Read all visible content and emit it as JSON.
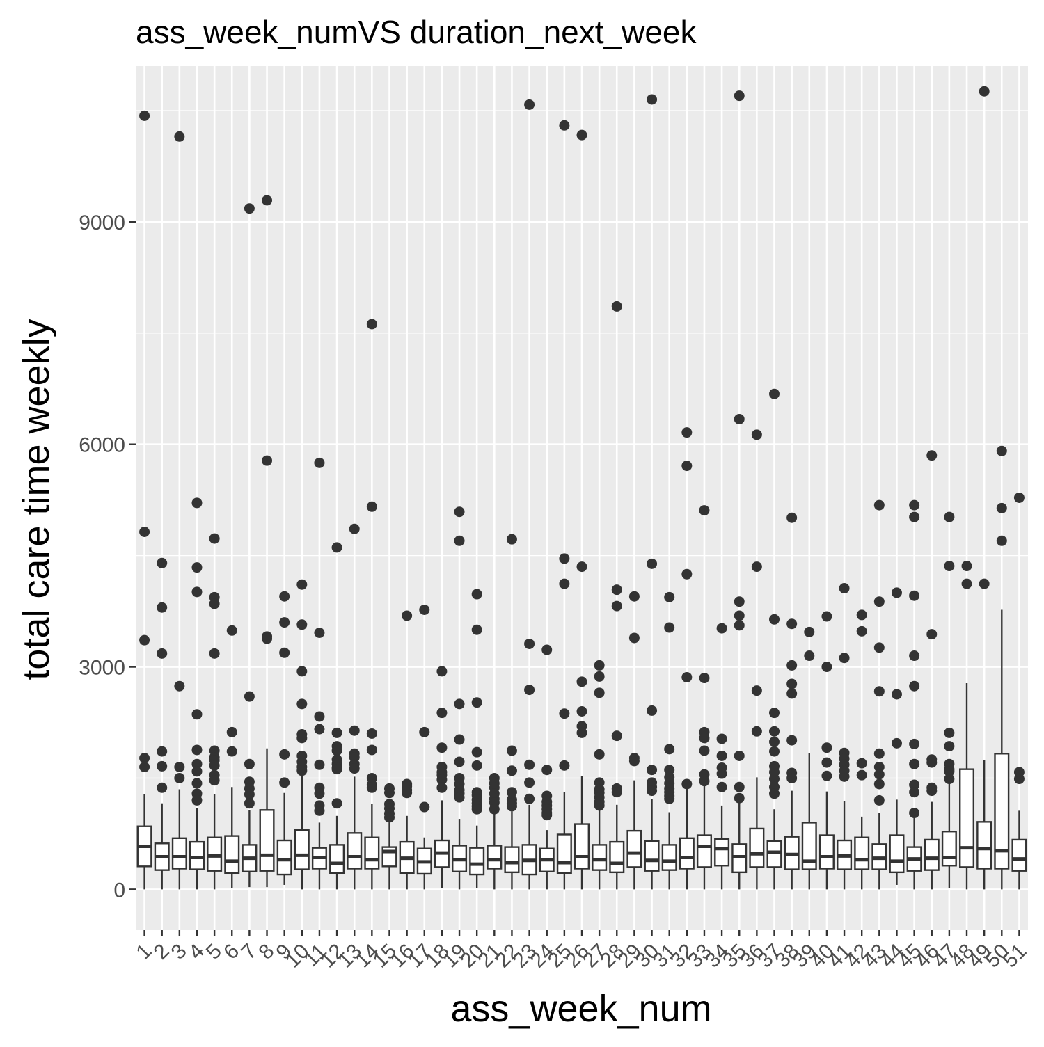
{
  "chart_data": {
    "type": "box",
    "title": "ass_week_numVS duration_next_week",
    "xlabel": "ass_week_num",
    "ylabel": "total care time weekly",
    "ylim": [
      -550,
      11100
    ],
    "yticks": [
      0,
      3000,
      6000,
      9000
    ],
    "grid": true,
    "legend": "none",
    "colors": {
      "panel_background": "#ebebeb",
      "grid_line": "#ffffff",
      "box_fill": "#ffffff",
      "box_line": "#333333",
      "outlier": "#333333",
      "tick_text": "#4d4d4d"
    },
    "categories": [
      "1",
      "2",
      "3",
      "4",
      "5",
      "6",
      "7",
      "8",
      "9",
      "10",
      "11",
      "12",
      "13",
      "14",
      "15",
      "16",
      "17",
      "18",
      "19",
      "20",
      "21",
      "22",
      "23",
      "24",
      "25",
      "26",
      "27",
      "28",
      "29",
      "30",
      "31",
      "32",
      "33",
      "34",
      "35",
      "36",
      "37",
      "38",
      "39",
      "40",
      "41",
      "42",
      "43",
      "44",
      "45",
      "46",
      "47",
      "48",
      "49",
      "50",
      "51"
    ],
    "boxes": [
      {
        "min": 0,
        "q1": 310,
        "median": 580,
        "q3": 850,
        "max": 1280,
        "outliers": [
          10430,
          4820,
          3360,
          1770,
          1650
        ]
      },
      {
        "min": 0,
        "q1": 260,
        "median": 440,
        "q3": 620,
        "max": 1160,
        "outliers": [
          4400,
          3800,
          3180,
          1860,
          1660,
          1370
        ]
      },
      {
        "min": 0,
        "q1": 280,
        "median": 440,
        "q3": 690,
        "max": 1350,
        "outliers": [
          10150,
          2740,
          1650,
          1500
        ]
      },
      {
        "min": 0,
        "q1": 270,
        "median": 430,
        "q3": 640,
        "max": 1100,
        "outliers": [
          5210,
          4340,
          4010,
          2360,
          1880,
          1690,
          1590,
          1430,
          1290,
          1200
        ]
      },
      {
        "min": 0,
        "q1": 250,
        "median": 450,
        "q3": 700,
        "max": 1280,
        "outliers": [
          4730,
          3940,
          3850,
          3180,
          1870,
          1780,
          1740,
          1670,
          1540,
          1470
        ]
      },
      {
        "min": 20,
        "q1": 220,
        "median": 380,
        "q3": 720,
        "max": 1380,
        "outliers": [
          3490,
          2120,
          1860
        ]
      },
      {
        "min": 30,
        "q1": 240,
        "median": 420,
        "q3": 600,
        "max": 1070,
        "outliers": [
          9180,
          2600,
          1690,
          1450,
          1360,
          1280,
          1160
        ]
      },
      {
        "min": 30,
        "q1": 250,
        "median": 460,
        "q3": 1070,
        "max": 1900,
        "outliers": [
          9290,
          5780,
          3410,
          3380
        ]
      },
      {
        "min": 60,
        "q1": 200,
        "median": 400,
        "q3": 660,
        "max": 1300,
        "outliers": [
          3950,
          3600,
          3190,
          1820,
          1440
        ]
      },
      {
        "min": 0,
        "q1": 270,
        "median": 460,
        "q3": 800,
        "max": 1600,
        "outliers": [
          4110,
          3570,
          2940,
          2500,
          2090,
          2040,
          1800,
          1720,
          1650,
          1600
        ]
      },
      {
        "min": 0,
        "q1": 280,
        "median": 430,
        "q3": 560,
        "max": 900,
        "outliers": [
          5750,
          3460,
          2330,
          2160,
          1680,
          1370,
          1290,
          1130,
          1060
        ]
      },
      {
        "min": 0,
        "q1": 220,
        "median": 350,
        "q3": 600,
        "max": 990,
        "outliers": [
          4610,
          2110,
          1930,
          1870,
          1750,
          1690,
          1640,
          1620,
          1160
        ]
      },
      {
        "min": 0,
        "q1": 280,
        "median": 440,
        "q3": 760,
        "max": 1520,
        "outliers": [
          4860,
          2140,
          1830,
          1780,
          1690,
          1630
        ]
      },
      {
        "min": 0,
        "q1": 280,
        "median": 400,
        "q3": 700,
        "max": 1150,
        "outliers": [
          7620,
          5160,
          2100,
          1880,
          1500,
          1410,
          1370
        ]
      },
      {
        "min": 0,
        "q1": 310,
        "median": 510,
        "q3": 570,
        "max": 900,
        "outliers": [
          1360,
          1300,
          1150,
          1090,
          1020,
          970
        ]
      },
      {
        "min": 0,
        "q1": 220,
        "median": 420,
        "q3": 640,
        "max": 990,
        "outliers": [
          3690,
          1420,
          1390,
          1340,
          1300
        ]
      },
      {
        "min": 0,
        "q1": 210,
        "median": 370,
        "q3": 550,
        "max": 700,
        "outliers": [
          3770,
          2120,
          1110
        ]
      },
      {
        "min": 20,
        "q1": 300,
        "median": 490,
        "q3": 660,
        "max": 1200,
        "outliers": [
          2940,
          2380,
          1910,
          1650,
          1580,
          1540,
          1480,
          1370
        ]
      },
      {
        "min": 0,
        "q1": 240,
        "median": 400,
        "q3": 590,
        "max": 950,
        "outliers": [
          5090,
          4700,
          2500,
          2020,
          1720,
          1500,
          1420,
          1340,
          1290,
          1240
        ]
      },
      {
        "min": 20,
        "q1": 200,
        "median": 340,
        "q3": 560,
        "max": 860,
        "outliers": [
          3980,
          3500,
          2520,
          1850,
          1670,
          1310,
          1270,
          1210,
          1160,
          1120,
          1080
        ]
      },
      {
        "min": 0,
        "q1": 280,
        "median": 400,
        "q3": 590,
        "max": 1050,
        "outliers": [
          1500,
          1430,
          1370,
          1290,
          1220,
          1170,
          1080
        ]
      },
      {
        "min": 0,
        "q1": 230,
        "median": 360,
        "q3": 570,
        "max": 1050,
        "outliers": [
          4720,
          1870,
          1600,
          1310,
          1210,
          1160,
          1120
        ]
      },
      {
        "min": 0,
        "q1": 200,
        "median": 390,
        "q3": 600,
        "max": 1140,
        "outliers": [
          10580,
          3310,
          2690,
          1680,
          1440,
          1220
        ]
      },
      {
        "min": 0,
        "q1": 240,
        "median": 400,
        "q3": 550,
        "max": 800,
        "outliers": [
          3230,
          1610,
          1260,
          1180,
          1130,
          1080,
          1030,
          1000
        ]
      },
      {
        "min": 0,
        "q1": 220,
        "median": 360,
        "q3": 740,
        "max": 1310,
        "outliers": [
          10300,
          4460,
          4120,
          2370,
          1670
        ]
      },
      {
        "min": 0,
        "q1": 280,
        "median": 440,
        "q3": 880,
        "max": 1530,
        "outliers": [
          10170,
          4350,
          2800,
          2400,
          2200,
          2110
        ]
      },
      {
        "min": 0,
        "q1": 260,
        "median": 400,
        "q3": 600,
        "max": 1100,
        "outliers": [
          3020,
          2870,
          2650,
          1820,
          1440,
          1350,
          1300,
          1240,
          1180,
          1130
        ]
      },
      {
        "min": 0,
        "q1": 230,
        "median": 350,
        "q3": 640,
        "max": 1140,
        "outliers": [
          7860,
          4040,
          3820,
          2070,
          1360,
          1310
        ]
      },
      {
        "min": 0,
        "q1": 300,
        "median": 490,
        "q3": 790,
        "max": 1470,
        "outliers": [
          3950,
          3390,
          1770,
          1730
        ]
      },
      {
        "min": 0,
        "q1": 250,
        "median": 390,
        "q3": 650,
        "max": 1220,
        "outliers": [
          10650,
          4390,
          2410,
          1610,
          1440,
          1380,
          1330
        ]
      },
      {
        "min": 0,
        "q1": 260,
        "median": 380,
        "q3": 600,
        "max": 1040,
        "outliers": [
          3940,
          3530,
          1890,
          1610,
          1510,
          1430,
          1360,
          1310,
          1260,
          1220
        ]
      },
      {
        "min": 0,
        "q1": 280,
        "median": 430,
        "q3": 690,
        "max": 1420,
        "outliers": [
          6160,
          5710,
          4250,
          2860,
          1420
        ]
      },
      {
        "min": 0,
        "q1": 300,
        "median": 580,
        "q3": 730,
        "max": 1400,
        "outliers": [
          5110,
          2850,
          2120,
          2040,
          1870,
          1550,
          1460
        ]
      },
      {
        "min": 0,
        "q1": 320,
        "median": 550,
        "q3": 680,
        "max": 1130,
        "outliers": [
          3520,
          2030,
          1800,
          1640,
          1560,
          1380
        ]
      },
      {
        "min": 0,
        "q1": 230,
        "median": 440,
        "q3": 610,
        "max": 1220,
        "outliers": [
          10700,
          6340,
          3880,
          3690,
          3560,
          1800,
          1380,
          1230
        ]
      },
      {
        "min": 0,
        "q1": 300,
        "median": 480,
        "q3": 820,
        "max": 1510,
        "outliers": [
          6130,
          4350,
          2680,
          2130
        ]
      },
      {
        "min": 0,
        "q1": 300,
        "median": 500,
        "q3": 650,
        "max": 1080,
        "outliers": [
          6680,
          3640,
          2380,
          2130,
          1990,
          1860,
          1660,
          1580,
          1490,
          1380,
          1290
        ]
      },
      {
        "min": 0,
        "q1": 270,
        "median": 470,
        "q3": 710,
        "max": 1330,
        "outliers": [
          5010,
          3580,
          3020,
          2770,
          2640,
          2010,
          1570,
          1500
        ]
      },
      {
        "min": 0,
        "q1": 270,
        "median": 380,
        "q3": 900,
        "max": 1840,
        "outliers": [
          3470,
          3150
        ]
      },
      {
        "min": 0,
        "q1": 280,
        "median": 440,
        "q3": 730,
        "max": 1320,
        "outliers": [
          3680,
          3000,
          1910,
          1710,
          1530
        ]
      },
      {
        "min": 0,
        "q1": 270,
        "median": 450,
        "q3": 660,
        "max": 1190,
        "outliers": [
          4060,
          3120,
          1840,
          1760,
          1680,
          1600,
          1520
        ]
      },
      {
        "min": 0,
        "q1": 270,
        "median": 400,
        "q3": 700,
        "max": 980,
        "outliers": [
          3700,
          3480,
          1700,
          1540
        ]
      },
      {
        "min": 0,
        "q1": 270,
        "median": 420,
        "q3": 610,
        "max": 1030,
        "outliers": [
          5180,
          3880,
          3260,
          2670,
          1830,
          1650,
          1550,
          1420,
          1200
        ]
      },
      {
        "min": 60,
        "q1": 230,
        "median": 380,
        "q3": 730,
        "max": 1210,
        "outliers": [
          4000,
          2630,
          1970
        ]
      },
      {
        "min": 0,
        "q1": 250,
        "median": 410,
        "q3": 570,
        "max": 1030,
        "outliers": [
          5180,
          5020,
          3960,
          3150,
          2740,
          1960,
          1690,
          1410,
          1310,
          1030
        ]
      },
      {
        "min": 0,
        "q1": 260,
        "median": 420,
        "q3": 670,
        "max": 1180,
        "outliers": [
          5850,
          3440,
          1750,
          1710,
          1370,
          1330
        ]
      },
      {
        "min": 20,
        "q1": 320,
        "median": 430,
        "q3": 780,
        "max": 1480,
        "outliers": [
          5020,
          4360,
          2110,
          1930,
          1690,
          1620,
          1590,
          1490
        ]
      },
      {
        "min": 0,
        "q1": 300,
        "median": 560,
        "q3": 1620,
        "max": 2780,
        "outliers": [
          4360,
          4120
        ]
      },
      {
        "min": 0,
        "q1": 280,
        "median": 550,
        "q3": 910,
        "max": 1740,
        "outliers": [
          10760,
          4120
        ]
      },
      {
        "min": 0,
        "q1": 280,
        "median": 520,
        "q3": 1830,
        "max": 3770,
        "outliers": [
          5910,
          5140,
          4700
        ]
      },
      {
        "min": 0,
        "q1": 250,
        "median": 410,
        "q3": 670,
        "max": 1060,
        "outliers": [
          5280,
          1580,
          1490
        ]
      }
    ]
  }
}
